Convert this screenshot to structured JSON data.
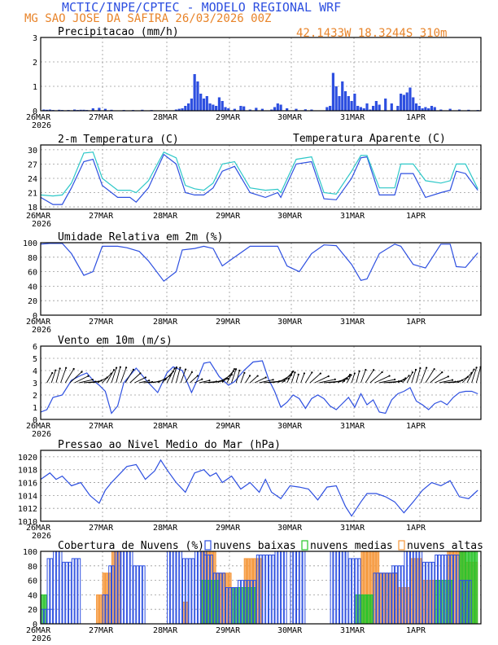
{
  "header": {
    "title": "MCTIC/INPE/CPTEC - MODELO REGIONAL WRF",
    "location_date": "MG SAO JOSE DA SAFIRA   26/03/2026 00Z",
    "coords": "42.1433W 18.3244S 310m"
  },
  "time_axis": {
    "labels": [
      "26MAR",
      "27MAR",
      "28MAR",
      "29MAR",
      "30MAR",
      "31MAR",
      "1APR"
    ],
    "year": "2026"
  },
  "colors": {
    "blue": "#2d4fe0",
    "cyan": "#2ec8c8",
    "orange": "#f5973a",
    "green": "#27c42a",
    "purple": "#8a4fa8",
    "header_blue": "#2d4fe0",
    "header_orange": "#e8842a"
  },
  "chart_data": [
    {
      "id": "precip",
      "type": "bar",
      "title": "Precipitacao (mm/h)",
      "ylim": [
        0,
        3
      ],
      "yticks": [
        "0",
        "1",
        "2",
        "3"
      ],
      "x_hours": [
        1,
        2,
        3,
        4,
        6,
        7,
        9,
        11,
        12,
        13,
        14,
        15,
        17,
        19,
        21,
        23,
        27,
        30,
        33,
        36,
        44,
        45,
        46,
        47,
        48,
        49,
        50,
        51,
        52,
        53,
        54,
        55,
        56,
        57,
        58,
        59,
        60,
        61,
        63,
        65,
        66,
        68,
        70,
        72,
        75,
        76,
        77,
        78,
        80,
        83,
        86,
        88,
        93,
        94,
        95,
        96,
        97,
        98,
        99,
        100,
        101,
        102,
        103,
        104,
        105,
        106,
        107,
        108,
        109,
        110,
        112,
        114,
        116,
        117,
        118,
        119,
        120,
        121,
        122,
        123,
        124,
        125,
        126,
        127,
        128,
        130,
        133,
        136,
        139,
        142
      ],
      "values": [
        0.05,
        0.04,
        0.05,
        0.03,
        0.04,
        0.03,
        0.03,
        0.05,
        0.03,
        0.04,
        0.04,
        0.03,
        0.1,
        0.12,
        0.08,
        0.04,
        0.03,
        0.03,
        0.04,
        0.03,
        0.05,
        0.08,
        0.1,
        0.2,
        0.3,
        0.5,
        1.5,
        1.2,
        0.7,
        0.5,
        0.6,
        0.3,
        0.25,
        0.2,
        0.55,
        0.4,
        0.15,
        0.1,
        0.08,
        0.2,
        0.18,
        0.05,
        0.12,
        0.08,
        0.05,
        0.15,
        0.3,
        0.25,
        0.1,
        0.08,
        0.06,
        0.05,
        0.15,
        0.2,
        1.55,
        1.0,
        0.6,
        1.2,
        0.8,
        0.6,
        0.4,
        0.7,
        0.2,
        0.15,
        0.1,
        0.3,
        0.05,
        0.2,
        0.4,
        0.25,
        0.5,
        0.3,
        0.2,
        0.7,
        0.65,
        0.75,
        0.95,
        0.55,
        0.3,
        0.2,
        0.1,
        0.15,
        0.1,
        0.2,
        0.15,
        0.05,
        0.08,
        0.05,
        0.04,
        0.03
      ]
    },
    {
      "id": "temp",
      "type": "line",
      "title": "2-m Temperatura (C)",
      "legend": "Temperatura Aparente (C)",
      "ylim": [
        17.5,
        31
      ],
      "yticks": [
        "18",
        "21",
        "24",
        "27",
        "30"
      ],
      "series": [
        {
          "name": "2-m Temperatura (C)",
          "color": "#2d4fe0",
          "t": [
            0,
            4,
            7,
            10,
            14,
            17,
            20,
            25,
            29,
            31,
            35,
            40,
            44,
            47,
            50,
            53,
            56,
            59,
            63,
            68,
            73,
            77,
            78,
            83,
            88,
            92,
            96,
            101,
            104,
            106,
            110,
            115,
            117,
            121,
            125,
            130,
            133,
            135,
            138,
            142
          ],
          "v": [
            20,
            18.5,
            18.5,
            22,
            27.5,
            28,
            22.5,
            20,
            20,
            19,
            22,
            29,
            27,
            21,
            20.5,
            20.5,
            22,
            25.5,
            26.5,
            21,
            20,
            21,
            20,
            27,
            27.5,
            19.7,
            19.5,
            24,
            28.3,
            28.5,
            20.5,
            20.5,
            25,
            25,
            20,
            21,
            21.5,
            25.5,
            25,
            21.5
          ]
        },
        {
          "name": "Temperatura Aparente (C)",
          "color": "#2ec8c8",
          "t": [
            0,
            4,
            7,
            10,
            14,
            17,
            20,
            25,
            29,
            31,
            35,
            40,
            44,
            47,
            50,
            53,
            56,
            59,
            63,
            68,
            73,
            77,
            78,
            83,
            88,
            92,
            96,
            101,
            104,
            106,
            110,
            115,
            117,
            121,
            125,
            130,
            133,
            135,
            138,
            142
          ],
          "v": [
            20.5,
            20.3,
            20.5,
            23,
            29.3,
            29.5,
            24,
            21.5,
            21.5,
            21,
            23.5,
            29.5,
            28.3,
            22.5,
            21.8,
            21.5,
            23,
            27,
            27.5,
            22,
            21.5,
            21.7,
            21,
            28,
            28.5,
            21,
            20.7,
            25.5,
            28.8,
            28.8,
            22,
            22,
            27,
            27,
            23.5,
            23,
            23.5,
            27,
            27,
            21.8
          ]
        }
      ]
    },
    {
      "id": "humidity",
      "type": "line",
      "title": "Umidade Relativa em 2m (%)",
      "ylim": [
        0,
        100
      ],
      "yticks": [
        "0",
        "20",
        "40",
        "60",
        "80",
        "100"
      ],
      "series": [
        {
          "name": "Umidade Relativa em 2m (%)",
          "color": "#2d4fe0",
          "t": [
            0,
            3,
            7,
            10,
            14,
            17,
            20,
            25,
            28,
            32,
            35,
            40,
            44,
            46,
            50,
            53,
            56,
            59,
            63,
            68,
            73,
            77,
            78,
            80,
            84,
            88,
            92,
            96,
            101,
            104,
            106,
            110,
            115,
            117,
            121,
            125,
            130,
            133,
            135,
            138,
            142
          ],
          "v": [
            98,
            99,
            99,
            85,
            55,
            60,
            95,
            95,
            93,
            88,
            75,
            47,
            60,
            90,
            92,
            95,
            92,
            68,
            80,
            95,
            95,
            95,
            86,
            68,
            60,
            85,
            97,
            96,
            70,
            48,
            50,
            85,
            98,
            95,
            70,
            65,
            98,
            98,
            67,
            66,
            86
          ]
        }
      ]
    },
    {
      "id": "wind",
      "type": "line",
      "title": "Vento em 10m (m/s)",
      "ylim": [
        0,
        6
      ],
      "yticks": [
        "0",
        "1",
        "2",
        "3",
        "4",
        "5",
        "6"
      ],
      "series": [
        {
          "name": "Vento em 10m (m/s)",
          "color": "#2d4fe0",
          "t": [
            0,
            2,
            4,
            7,
            10,
            13,
            15,
            17,
            19,
            21,
            23,
            25,
            27,
            29,
            31,
            35,
            38,
            41,
            43,
            46,
            49,
            51,
            53,
            55,
            58,
            61,
            63,
            66,
            69,
            72,
            74,
            76,
            78,
            80,
            82,
            84,
            86,
            88,
            90,
            92,
            94,
            96,
            98,
            100,
            102,
            104,
            106,
            108,
            110,
            112,
            114,
            116,
            118,
            120,
            122,
            124,
            126,
            128,
            130,
            132,
            134,
            136,
            138,
            140,
            142
          ],
          "v": [
            0.6,
            0.8,
            1.8,
            2.0,
            3.2,
            3.6,
            3.8,
            3.2,
            2.8,
            2.3,
            0.5,
            1.1,
            3.0,
            3.6,
            4.2,
            3.0,
            2.2,
            3.8,
            4.3,
            4.0,
            2.2,
            3.3,
            4.6,
            4.7,
            3.5,
            2.8,
            3.1,
            4.0,
            4.7,
            4.8,
            3.3,
            2.3,
            1.0,
            1.4,
            2.0,
            1.7,
            0.9,
            1.7,
            2.0,
            1.7,
            1.1,
            0.8,
            1.3,
            1.8,
            1.0,
            2.1,
            1.2,
            1.6,
            0.6,
            0.5,
            1.6,
            2.1,
            2.3,
            2.6,
            1.5,
            1.2,
            0.8,
            1.3,
            1.5,
            1.2,
            1.8,
            2.2,
            2.3,
            2.3,
            2.1
          ]
        }
      ]
    },
    {
      "id": "pressure",
      "type": "line",
      "title": "Pressao ao Nivel Medio do Mar (hPa)",
      "ylim": [
        1010,
        1021
      ],
      "yticks": [
        "1010",
        "1012",
        "1014",
        "1016",
        "1018",
        "1020"
      ],
      "series": [
        {
          "name": "Pressao ao Nivel Medio do Mar (hPa)",
          "color": "#2d4fe0",
          "t": [
            0,
            3,
            5,
            7,
            10,
            13,
            16,
            19,
            21,
            23,
            25,
            28,
            31,
            34,
            37,
            39,
            41,
            44,
            47,
            50,
            53,
            55,
            57,
            59,
            62,
            65,
            68,
            71,
            73,
            75,
            78,
            81,
            84,
            87,
            90,
            93,
            96,
            99,
            101,
            104,
            106,
            109,
            112,
            115,
            118,
            121,
            124,
            127,
            130,
            133,
            136,
            139,
            142
          ],
          "v": [
            1016.5,
            1017.5,
            1016.5,
            1017,
            1015.5,
            1016,
            1014,
            1012.8,
            1014.8,
            1016,
            1017,
            1018.5,
            1018.8,
            1016.5,
            1017.8,
            1019.5,
            1018,
            1016,
            1014.5,
            1017.5,
            1018,
            1017,
            1017.5,
            1016,
            1017,
            1015,
            1016,
            1014.5,
            1016.5,
            1014.5,
            1013.5,
            1015.5,
            1015.3,
            1015,
            1013.3,
            1015.3,
            1015.5,
            1012.3,
            1010.8,
            1013,
            1014.3,
            1014.3,
            1013.8,
            1013,
            1011.3,
            1013,
            1014.8,
            1016,
            1015.5,
            1016.3,
            1013.8,
            1013.5,
            1014.8
          ]
        }
      ]
    },
    {
      "id": "clouds",
      "type": "bar",
      "title": "Cobertura de Nuvens (%)",
      "ylim": [
        0,
        100
      ],
      "yticks": [
        "0",
        "20",
        "40",
        "60",
        "80",
        "100"
      ],
      "legend": [
        "nuvens baixas",
        "nuvens medias",
        "nuvens altas"
      ],
      "series": [
        {
          "name": "nuvens baixas",
          "color": "#2d4fe0",
          "segments": [
            [
              0,
              4,
              20
            ],
            [
              2,
              4,
              90
            ],
            [
              4,
              7,
              100
            ],
            [
              7,
              10,
              85
            ],
            [
              10,
              13,
              90
            ],
            [
              20,
              22,
              40
            ],
            [
              22,
              24,
              80
            ],
            [
              24,
              30,
              100
            ],
            [
              30,
              34,
              80
            ],
            [
              41,
              46,
              100
            ],
            [
              46,
              50,
              90
            ],
            [
              50,
              54,
              100
            ],
            [
              53,
              56,
              95
            ],
            [
              56,
              60,
              70
            ],
            [
              60,
              64,
              50
            ],
            [
              64,
              70,
              60
            ],
            [
              70,
              76,
              95
            ],
            [
              76,
              80,
              100
            ],
            [
              81,
              86,
              100
            ],
            [
              94,
              100,
              100
            ],
            [
              100,
              104,
              90
            ],
            [
              108,
              116,
              70
            ],
            [
              114,
              118,
              80
            ],
            [
              118,
              124,
              100
            ],
            [
              124,
              128,
              85
            ],
            [
              128,
              136,
              95
            ],
            [
              136,
              140,
              60
            ]
          ]
        },
        {
          "name": "nuvens medias",
          "color": "#27c42a",
          "segments": [
            [
              0,
              2,
              40
            ],
            [
              52,
              58,
              60
            ],
            [
              62,
              70,
              50
            ],
            [
              102,
              108,
              40
            ],
            [
              128,
              134,
              60
            ],
            [
              136,
              142,
              100
            ]
          ]
        },
        {
          "name": "nuvens altas",
          "color": "#f5973a",
          "segments": [
            [
              18,
              20,
              40
            ],
            [
              20,
              23,
              70
            ],
            [
              23,
              26,
              100
            ],
            [
              46,
              48,
              30
            ],
            [
              52,
              57,
              100
            ],
            [
              57,
              62,
              70
            ],
            [
              66,
              72,
              90
            ],
            [
              104,
              110,
              100
            ],
            [
              110,
              116,
              70
            ],
            [
              116,
              120,
              50
            ],
            [
              120,
              124,
              90
            ],
            [
              124,
              128,
              60
            ],
            [
              132,
              138,
              100
            ],
            [
              138,
              142,
              85
            ]
          ]
        }
      ]
    }
  ]
}
